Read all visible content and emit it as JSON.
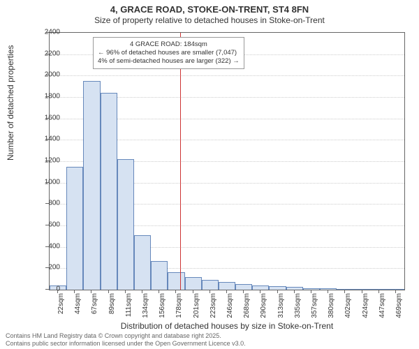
{
  "title_main": "4, GRACE ROAD, STOKE-ON-TRENT, ST4 8FN",
  "title_sub": "Size of property relative to detached houses in Stoke-on-Trent",
  "y_label": "Number of detached properties",
  "x_label": "Distribution of detached houses by size in Stoke-on-Trent",
  "footer_line1": "Contains HM Land Registry data © Crown copyright and database right 2025.",
  "footer_line2": "Contains public sector information licensed under the Open Government Licence v3.0.",
  "chart": {
    "type": "histogram",
    "ylim": [
      0,
      2400
    ],
    "ytick_step": 200,
    "bar_fill": "#d6e2f2",
    "bar_border": "#6688bb",
    "grid_color": "#cccccc",
    "axis_color": "#666666",
    "background_color": "#ffffff",
    "marker_color": "#cc3333",
    "title_fontsize": 13,
    "label_fontsize": 12,
    "tick_fontsize": 10,
    "categories": [
      "22sqm",
      "44sqm",
      "67sqm",
      "89sqm",
      "111sqm",
      "134sqm",
      "156sqm",
      "178sqm",
      "201sqm",
      "223sqm",
      "246sqm",
      "268sqm",
      "290sqm",
      "313sqm",
      "335sqm",
      "357sqm",
      "380sqm",
      "402sqm",
      "424sqm",
      "447sqm",
      "469sqm"
    ],
    "values": [
      40,
      1150,
      1950,
      1840,
      1220,
      510,
      270,
      160,
      120,
      90,
      70,
      50,
      40,
      30,
      25,
      15,
      10,
      8,
      6,
      5,
      4
    ],
    "marker_value": 184,
    "annotation": {
      "line1": "4 GRACE ROAD: 184sqm",
      "line2": "← 96% of detached houses are smaller (7,047)",
      "line3": "4% of semi-detached houses are larger (322) →"
    }
  }
}
